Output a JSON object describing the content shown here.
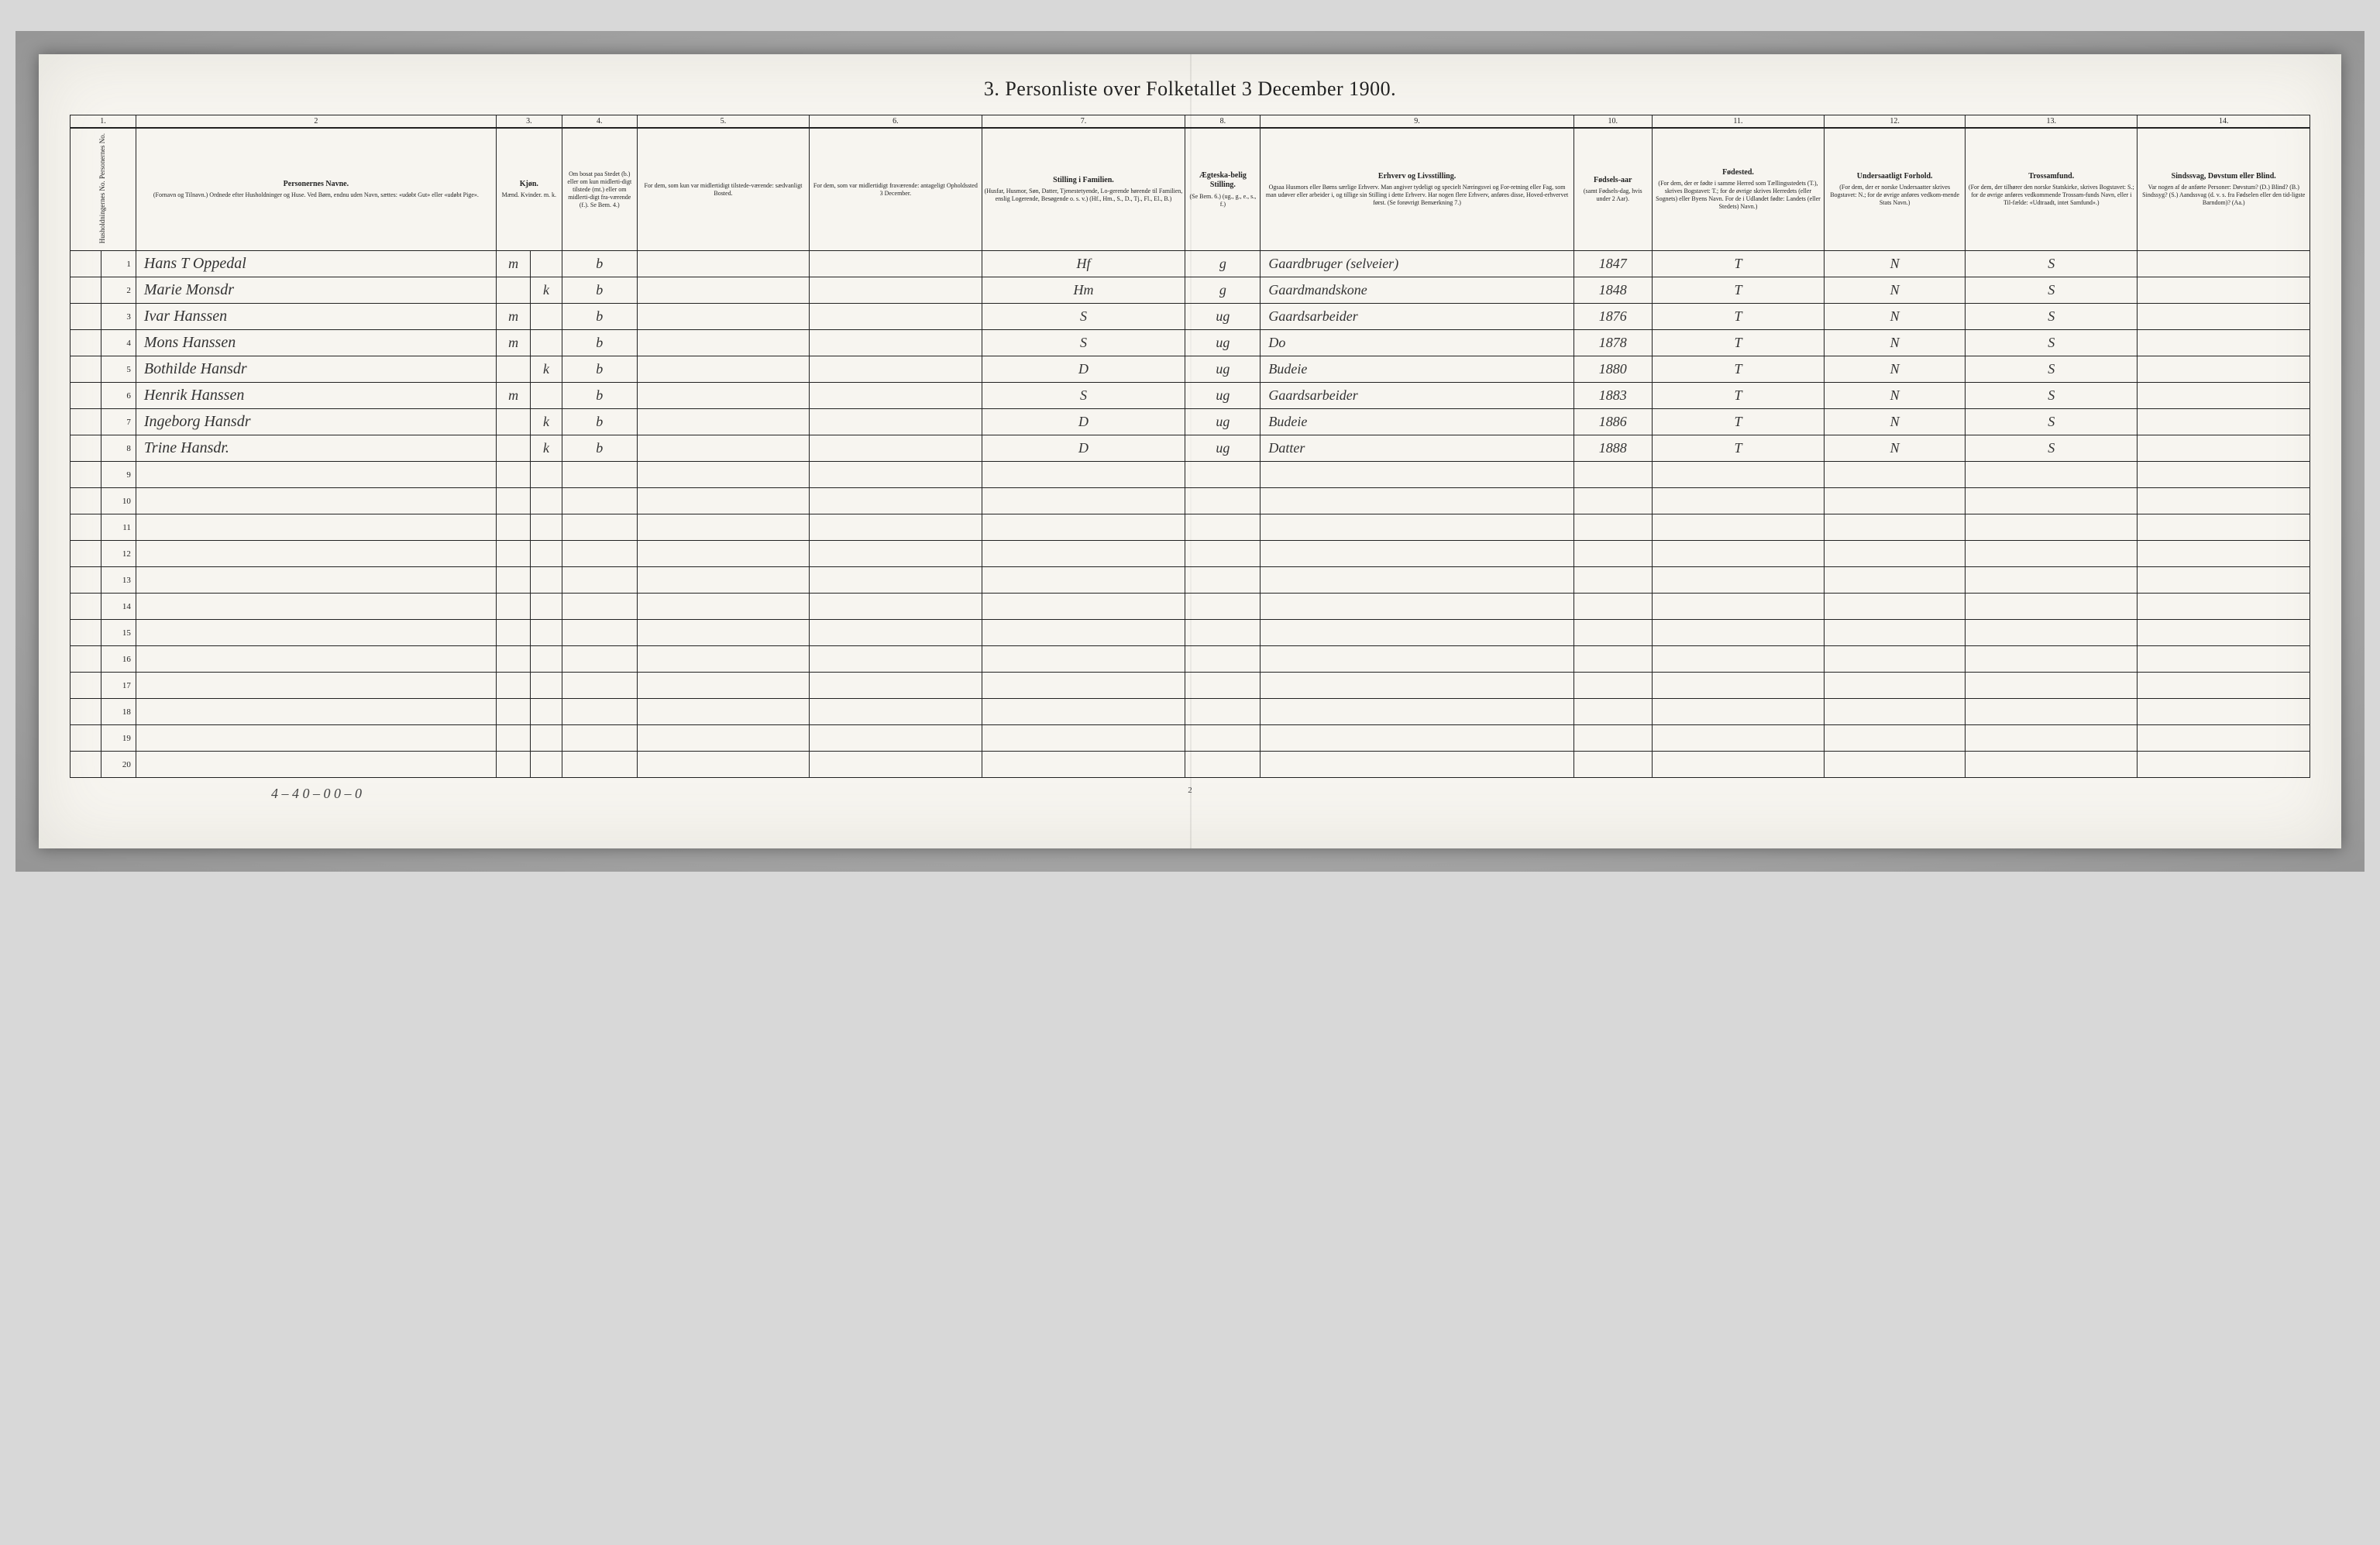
{
  "title": "3.  Personliste over Folketallet 3 December 1900.",
  "background_color": "#f7f5f0",
  "border_color": "#222222",
  "text_color": "#222222",
  "handwriting_color": "#333333",
  "columns": {
    "c1": {
      "num": "1.",
      "title": "",
      "sub": "Husholdningernes No.\nPersonernes No."
    },
    "c2": {
      "num": "2",
      "title": "Personernes Navne.",
      "sub": "(Fornavn og Tilnavn.)\nOrdnede efter Husholdninger og Huse.\nVed Børn, endnu uden Navn, sættes: «udøbt Gut» eller «udøbt Pige»."
    },
    "c3": {
      "num": "3.",
      "title": "Kjøn.",
      "sub": "Mænd.   Kvinder.\nm.   k."
    },
    "c4": {
      "num": "4.",
      "title": "",
      "sub": "Om bosat paa Stedet (b.) eller om kun midlerti-digt tilstede (mt.) eller om midlerti-digt fra-værende (f.).\nSe Bem. 4.)"
    },
    "c5": {
      "num": "5.",
      "title": "",
      "sub": "For dem, som kun var midlertidigt tilstede-værende:\nsædvanligt Bosted."
    },
    "c6": {
      "num": "6.",
      "title": "",
      "sub": "For dem, som var midlertidigt fraværende:\nantageligt Opholdssted\n3 December."
    },
    "c7": {
      "num": "7.",
      "title": "Stilling i Familien.",
      "sub": "(Husfar, Husmor, Søn, Datter, Tjenestetyende, Lo-gerende hørende til Familien, enslig Logerende, Besøgende o. s. v.)\n(Hf., Hm., S., D., Tj., Fl., El., B.)"
    },
    "c8": {
      "num": "8.",
      "title": "Ægteska-belig Stilling.",
      "sub": "(Se Bem. 6.)\n(ug., g., e., s., f.)"
    },
    "c9": {
      "num": "9.",
      "title": "Erhverv og Livsstilling.",
      "sub": "Ogsaa Husmors eller Børns særlige Erhverv.\nMan angiver tydeligt og specielt Næringsvei og For-retning eller Fag, som man udøver eller arbeider i, og tillige sin Stilling i dette Erhverv.\nHar nogen flere Erhverv, anføres disse, Hoved-erhvervet først.\n(Se forøvrigt Bemærkning 7.)"
    },
    "c10": {
      "num": "10.",
      "title": "Fødsels-aar",
      "sub": "(samt Fødsels-dag, hvis under 2 Aar)."
    },
    "c11": {
      "num": "11.",
      "title": "Fødested.",
      "sub": "(For dem, der er fødte i samme Herred som Tællingsstedets (T.), skrives Bogstavet: T.; for de øvrige skrives Herredets (eller Sognets) eller Byens Navn.\nFor de i Udlandet fødte: Landets (eller Stedets) Navn.)"
    },
    "c12": {
      "num": "12.",
      "title": "Undersaatligt Forhold.",
      "sub": "(For dem, der er norske Undersaatter skrives Bogstavet: N.; for de øvrige anføres vedkom-mende Stats Navn.)"
    },
    "c13": {
      "num": "13.",
      "title": "Trossamfund.",
      "sub": "(For dem, der tilhører den norske Statskirke, skrives Bogstavet: S.; for de øvrige anføres vedkommende Trossam-funds Navn, eller i Til-fælde: «Udtraadt, intet Samfund».)"
    },
    "c14": {
      "num": "14.",
      "title": "Sindssvag, Døvstum eller Blind.",
      "sub": "Var nogen af de anførte Personer:\nDøvstum?   (D.)\nBlind?   (B.)\nSindssyg?   (S.)\nAandssvag (d. v. s. fra Fødselen eller den tid-ligste Barndom)? (Aa.)"
    }
  },
  "rows": [
    {
      "n": "1",
      "name": "Hans T Oppedal",
      "sex_m": "m",
      "sex_k": "",
      "res": "b",
      "c5": "",
      "c6": "",
      "fam": "Hf",
      "mar": "g",
      "occ": "Gaardbruger (selveier)",
      "year": "1847",
      "born": "T",
      "nat": "N",
      "rel": "S",
      "c14": ""
    },
    {
      "n": "2",
      "name": "Marie Monsdr",
      "sex_m": "",
      "sex_k": "k",
      "res": "b",
      "c5": "",
      "c6": "",
      "fam": "Hm",
      "mar": "g",
      "occ": "Gaardmandskone",
      "year": "1848",
      "born": "T",
      "nat": "N",
      "rel": "S",
      "c14": ""
    },
    {
      "n": "3",
      "name": "Ivar Hanssen",
      "sex_m": "m",
      "sex_k": "",
      "res": "b",
      "c5": "",
      "c6": "",
      "fam": "S",
      "mar": "ug",
      "occ": "Gaardsarbeider",
      "year": "1876",
      "born": "T",
      "nat": "N",
      "rel": "S",
      "c14": ""
    },
    {
      "n": "4",
      "name": "Mons Hanssen",
      "sex_m": "m",
      "sex_k": "",
      "res": "b",
      "c5": "",
      "c6": "",
      "fam": "S",
      "mar": "ug",
      "occ": "Do",
      "year": "1878",
      "born": "T",
      "nat": "N",
      "rel": "S",
      "c14": ""
    },
    {
      "n": "5",
      "name": "Bothilde Hansdr",
      "sex_m": "",
      "sex_k": "k",
      "res": "b",
      "c5": "",
      "c6": "",
      "fam": "D",
      "mar": "ug",
      "occ": "Budeie",
      "year": "1880",
      "born": "T",
      "nat": "N",
      "rel": "S",
      "c14": ""
    },
    {
      "n": "6",
      "name": "Henrik Hanssen",
      "sex_m": "m",
      "sex_k": "",
      "res": "b",
      "c5": "",
      "c6": "",
      "fam": "S",
      "mar": "ug",
      "occ": "Gaardsarbeider",
      "year": "1883",
      "born": "T",
      "nat": "N",
      "rel": "S",
      "c14": ""
    },
    {
      "n": "7",
      "name": "Ingeborg Hansdr",
      "sex_m": "",
      "sex_k": "k",
      "res": "b",
      "c5": "",
      "c6": "",
      "fam": "D",
      "mar": "ug",
      "occ": "Budeie",
      "year": "1886",
      "born": "T",
      "nat": "N",
      "rel": "S",
      "c14": ""
    },
    {
      "n": "8",
      "name": "Trine Hansdr.",
      "sex_m": "",
      "sex_k": "k",
      "res": "b",
      "c5": "",
      "c6": "",
      "fam": "D",
      "mar": "ug",
      "occ": "Datter",
      "year": "1888",
      "born": "T",
      "nat": "N",
      "rel": "S",
      "c14": ""
    }
  ],
  "empty_rows": [
    "9",
    "10",
    "11",
    "12",
    "13",
    "14",
    "15",
    "16",
    "17",
    "18",
    "19",
    "20"
  ],
  "footer_tally": "4 – 4     0 – 0        0 – 0",
  "footer_pagenum": "2"
}
